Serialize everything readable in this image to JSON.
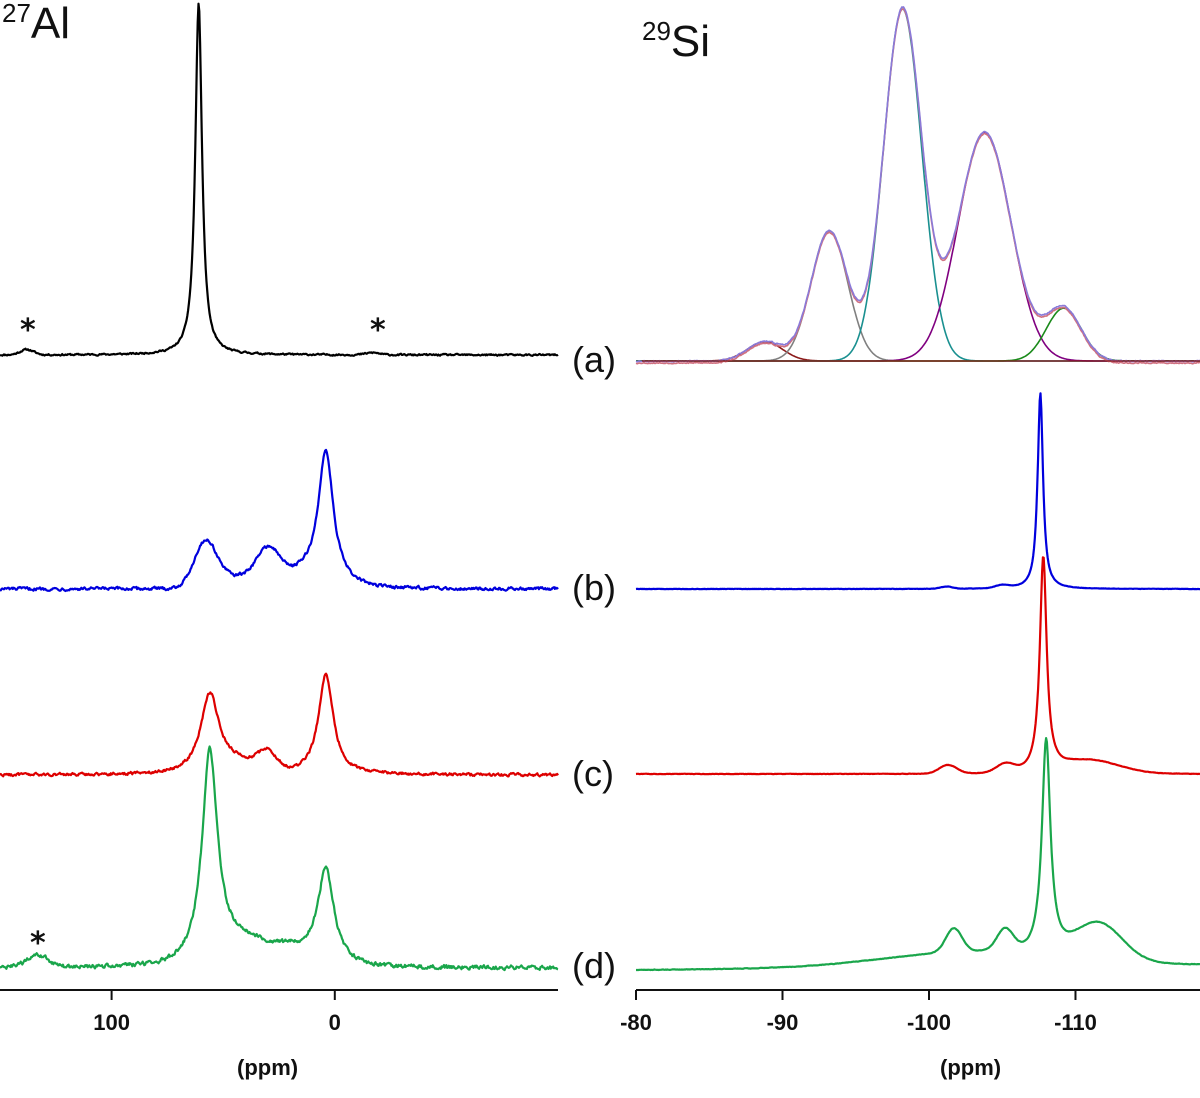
{
  "chart_data": [
    {
      "type": "line",
      "panel": "left",
      "title_sup": "27",
      "title_main": "Al",
      "xlabel": "(ppm)",
      "xlim": [
        150,
        -100
      ],
      "x_reversed": true,
      "xticks": [
        100,
        0
      ],
      "xtick_labels": [
        "100",
        "0"
      ],
      "annotations": [
        {
          "text": "*",
          "trace": "a",
          "x": 138
        },
        {
          "text": "*",
          "trace": "a",
          "x": -20
        },
        {
          "text": "*",
          "trace": "d",
          "x": 133
        }
      ],
      "series": [
        {
          "name": "(a)",
          "color": "#000000",
          "baseline_shift": 0,
          "noise": 0.4,
          "peaks": [
            {
              "center": 61,
              "height": 100,
              "width": 1.8,
              "shape": "lorentz"
            },
            {
              "center": 138,
              "height": 1.5,
              "width": 3,
              "shape": "gauss"
            },
            {
              "center": -17,
              "height": 0.6,
              "width": 3,
              "shape": "gauss"
            }
          ]
        },
        {
          "name": "(b)",
          "color": "#0000dd",
          "baseline_shift": 0,
          "noise": 1.2,
          "peaks": [
            {
              "center": 4,
              "height": 60,
              "width": 4,
              "shape": "lorentz"
            },
            {
              "center": 58,
              "height": 20,
              "width": 5,
              "shape": "gauss"
            },
            {
              "center": 30,
              "height": 14,
              "width": 5,
              "shape": "gauss"
            },
            {
              "center": 45,
              "height": 5,
              "width": 10,
              "shape": "gauss"
            },
            {
              "center": 15,
              "height": 6,
              "width": 12,
              "shape": "gauss"
            }
          ]
        },
        {
          "name": "(c)",
          "color": "#dd0000",
          "baseline_shift": 0,
          "noise": 1.2,
          "peaks": [
            {
              "center": 56,
              "height": 40,
              "width": 5,
              "shape": "lorentz"
            },
            {
              "center": 4,
              "height": 50,
              "width": 4,
              "shape": "lorentz"
            },
            {
              "center": 30,
              "height": 9,
              "width": 4,
              "shape": "gauss"
            },
            {
              "center": 42,
              "height": 5,
              "width": 8,
              "shape": "gauss"
            }
          ]
        },
        {
          "name": "(d)",
          "color": "#1aa64b",
          "baseline_shift": 0,
          "noise": 1.2,
          "peaks": [
            {
              "center": 56,
              "height": 72,
              "width": 4.2,
              "shape": "lorentz"
            },
            {
              "center": 4,
              "height": 33,
              "width": 4.5,
              "shape": "lorentz"
            },
            {
              "center": 40,
              "height": 8,
              "width": 12,
              "shape": "gauss"
            },
            {
              "center": 133,
              "height": 4,
              "width": 5,
              "shape": "gauss"
            },
            {
              "center": 18,
              "height": 4,
              "width": 8,
              "shape": "gauss"
            }
          ]
        }
      ]
    },
    {
      "type": "line",
      "panel": "right",
      "title_sup": "29",
      "title_main": "Si",
      "xlabel": "(ppm)",
      "xlim": [
        -80,
        -118.5
      ],
      "x_reversed": true,
      "xticks": [
        -80,
        -90,
        -100,
        -110
      ],
      "xtick_labels": [
        "-80",
        "-90",
        "-100",
        "-110"
      ],
      "series": [
        {
          "name": "(a)",
          "color": "#8a7ad8",
          "baseline_shift": 0,
          "noise": 0.3,
          "peaks": [
            {
              "center": -88.8,
              "height": 5.5,
              "width": 1.2,
              "shape": "gauss"
            },
            {
              "center": -93.2,
              "height": 37,
              "width": 1.25,
              "shape": "gauss"
            },
            {
              "center": -98.2,
              "height": 100,
              "width": 1.3,
              "shape": "gauss"
            },
            {
              "center": -103.8,
              "height": 65,
              "width": 1.8,
              "shape": "gauss"
            },
            {
              "center": -109.2,
              "height": 15,
              "width": 1.2,
              "shape": "gauss"
            }
          ],
          "components": [
            {
              "center": -88.8,
              "height": 5.5,
              "width": 1.2,
              "color": "#8b1a1a"
            },
            {
              "center": -93.2,
              "height": 37,
              "width": 1.25,
              "color": "#808080"
            },
            {
              "center": -98.2,
              "height": 100,
              "width": 1.3,
              "color": "#1a9090"
            },
            {
              "center": -103.8,
              "height": 65,
              "width": 1.8,
              "color": "#800080"
            },
            {
              "center": -109.2,
              "height": 15,
              "width": 1.2,
              "color": "#1a8a1a"
            }
          ]
        },
        {
          "name": "(b)",
          "color": "#0000dd",
          "baseline_shift": 0,
          "noise": 0.15,
          "peaks": [
            {
              "center": -107.6,
              "height": 100,
              "width": 0.22,
              "shape": "lorentz"
            },
            {
              "center": -101.2,
              "height": 1.2,
              "width": 0.4,
              "shape": "gauss"
            },
            {
              "center": -105.0,
              "height": 1.5,
              "width": 0.5,
              "shape": "gauss"
            }
          ]
        },
        {
          "name": "(c)",
          "color": "#dd0000",
          "baseline_shift": 0,
          "noise": 0.15,
          "peaks": [
            {
              "center": -107.8,
              "height": 100,
              "width": 0.28,
              "shape": "lorentz"
            },
            {
              "center": -101.3,
              "height": 4,
              "width": 0.6,
              "shape": "gauss"
            },
            {
              "center": -105.2,
              "height": 4,
              "width": 0.6,
              "shape": "gauss"
            },
            {
              "center": -111.0,
              "height": 6,
              "width": 2.0,
              "shape": "gauss"
            }
          ]
        },
        {
          "name": "(d)",
          "color": "#1aa64b",
          "baseline_shift": 0,
          "noise": 0.2,
          "peaks": [
            {
              "center": -108.0,
              "height": 100,
              "width": 0.35,
              "shape": "lorentz"
            },
            {
              "center": -101.7,
              "height": 11,
              "width": 0.55,
              "shape": "gauss"
            },
            {
              "center": -105.2,
              "height": 10,
              "width": 0.55,
              "shape": "gauss"
            },
            {
              "center": -111.6,
              "height": 17,
              "width": 1.6,
              "shape": "gauss"
            },
            {
              "center": -103.0,
              "height": 7,
              "width": 6,
              "shape": "gauss"
            }
          ]
        }
      ]
    }
  ]
}
